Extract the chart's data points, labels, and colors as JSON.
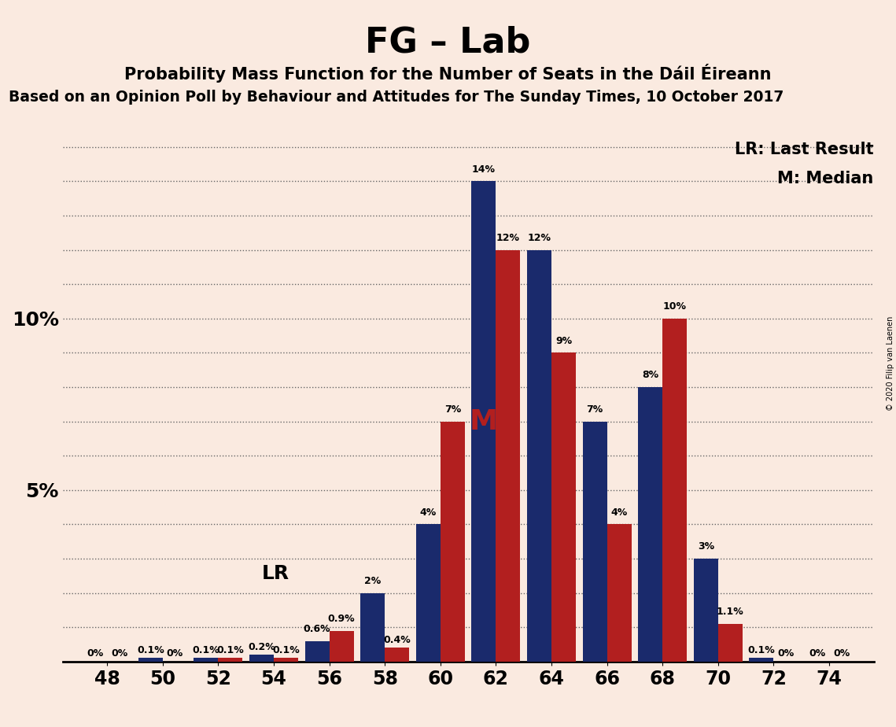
{
  "title": "FG – Lab",
  "subtitle": "Probability Mass Function for the Number of Seats in the Dáil Éireann",
  "subtitle2": "Based on an Opinion Poll by Behaviour and Attitudes for The Sunday Times, 10 October 2017",
  "copyright": "© 2020 Filip van Laenen",
  "legend_lr": "LR: Last Result",
  "legend_m": "M: Median",
  "median_label": "M",
  "lr_label": "LR",
  "background_color": "#faeae0",
  "bar_color_blue": "#1a2a6c",
  "bar_color_red": "#b21f1f",
  "seats": [
    48,
    50,
    52,
    54,
    56,
    58,
    60,
    62,
    64,
    66,
    68,
    70,
    72,
    74
  ],
  "blue_values": [
    0.0,
    0.1,
    0.1,
    0.2,
    0.6,
    2.0,
    4.0,
    14.0,
    12.0,
    7.0,
    8.0,
    3.0,
    0.1,
    0.0
  ],
  "red_values": [
    0.0,
    0.0,
    0.1,
    0.1,
    0.9,
    0.4,
    7.0,
    12.0,
    9.0,
    4.0,
    10.0,
    1.1,
    0.0,
    0.0
  ],
  "blue_labels": [
    "0%",
    "0.1%",
    "0.1%",
    "0.2%",
    "0.6%",
    "2%",
    "4%",
    "14%",
    "12%",
    "7%",
    "8%",
    "3%",
    "0.1%",
    "0%"
  ],
  "red_labels": [
    "0%",
    "0%",
    "0.1%",
    "0.1%",
    "0.9%",
    "0.4%",
    "7%",
    "12%",
    "9%",
    "4%",
    "10%",
    "1.1%",
    "0%",
    "0%"
  ],
  "blue_zero_indices": [
    0,
    13
  ],
  "red_zero_indices": [
    0,
    1,
    12,
    13
  ],
  "lr_seat_index": 4,
  "median_seat_index": 7,
  "ylim": [
    0,
    16
  ],
  "grid_yticks": [
    1,
    2,
    3,
    4,
    5,
    6,
    7,
    8,
    9,
    10,
    11,
    12,
    13,
    14,
    15
  ],
  "label_yticks": [
    5,
    10
  ],
  "bar_width": 0.44
}
